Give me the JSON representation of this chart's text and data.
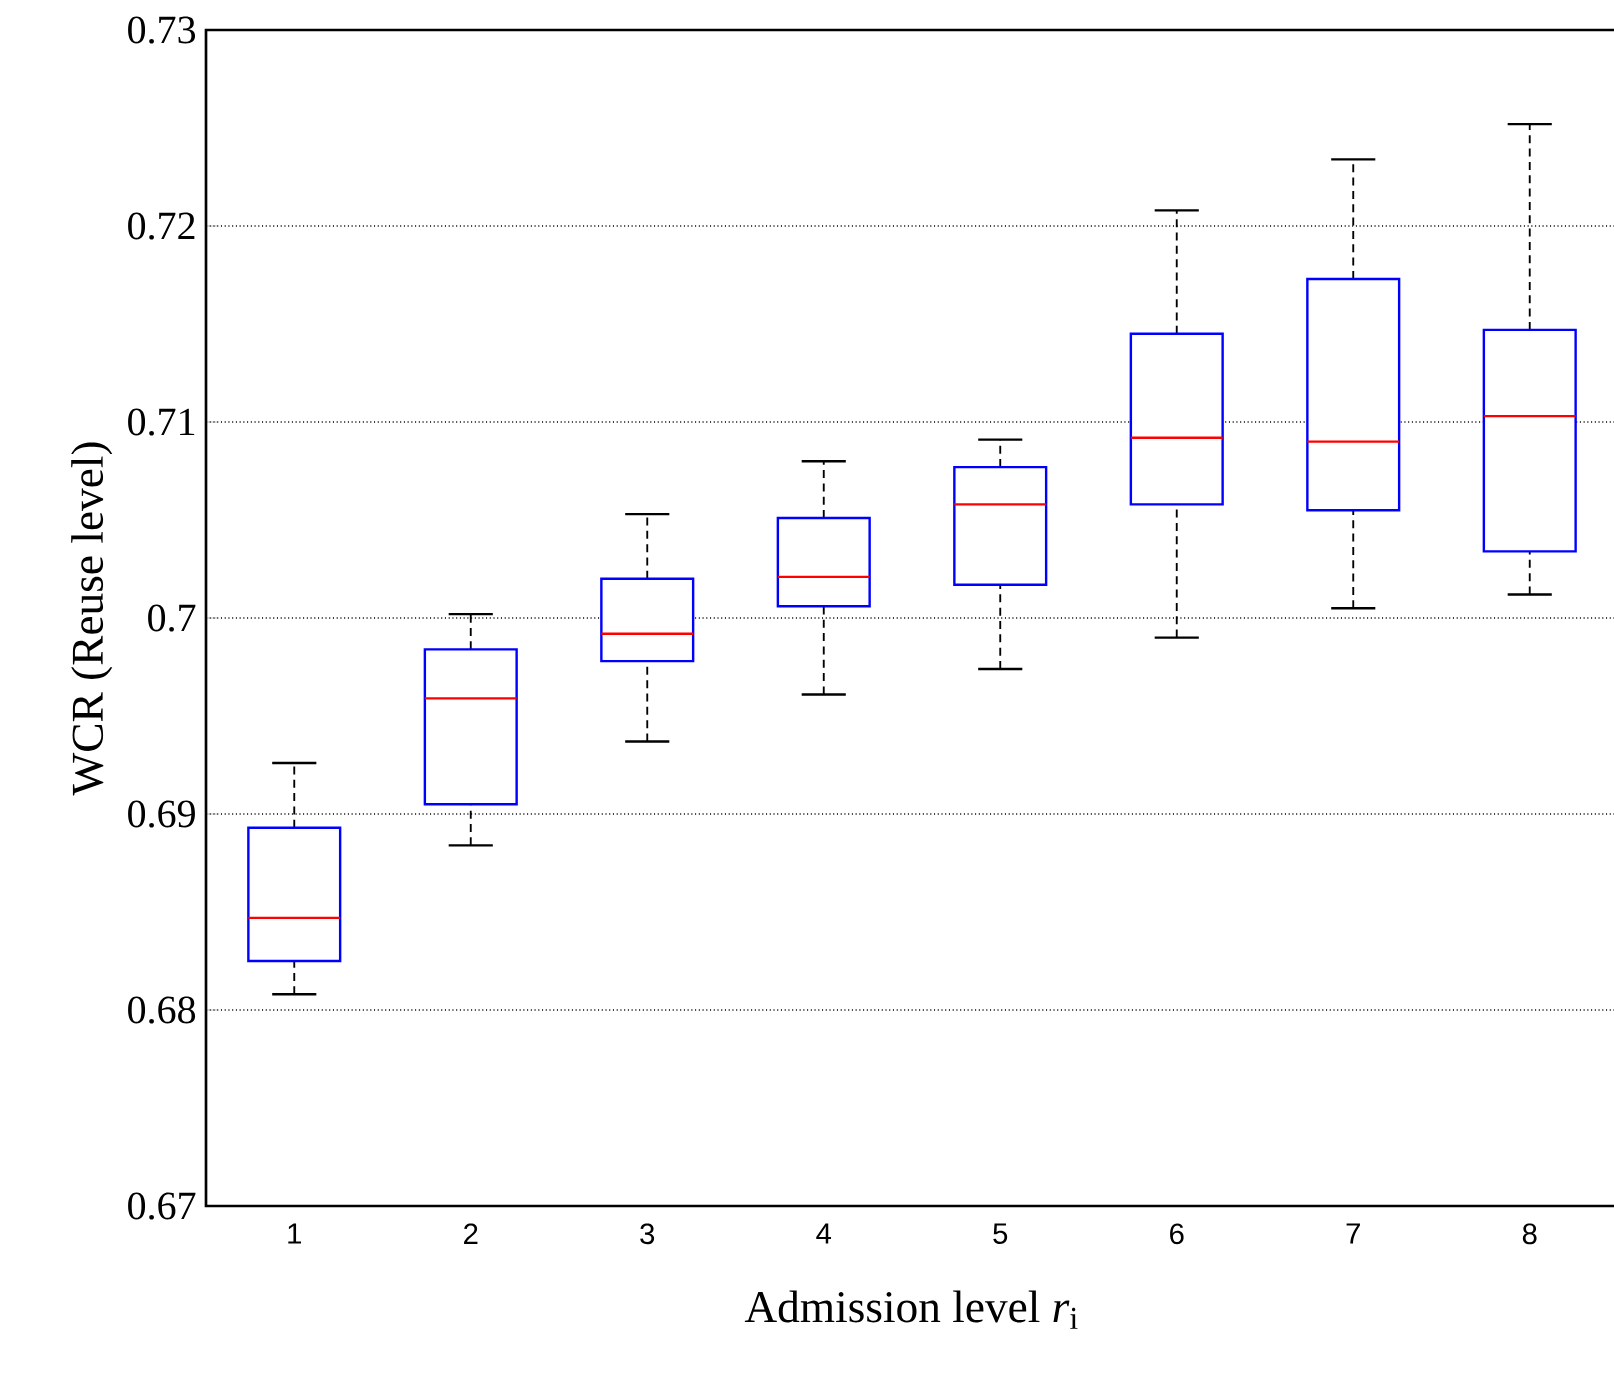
{
  "chart_data": {
    "type": "box",
    "xlabel": "Admission level *r*$_{i}$",
    "ylabel": "WCR (Reuse level)",
    "categories": [
      "1",
      "2",
      "3",
      "4",
      "5",
      "6",
      "7",
      "8"
    ],
    "color": "#0000ff",
    "boxes": [
      {
        "low": 0.6808,
        "q1": 0.6825,
        "median": 0.6847,
        "q3": 0.6893,
        "high": 0.6926
      },
      {
        "low": 0.6884,
        "q1": 0.6905,
        "median": 0.6959,
        "q3": 0.6984,
        "high": 0.7002
      },
      {
        "low": 0.6937,
        "q1": 0.6978,
        "median": 0.6992,
        "q3": 0.702,
        "high": 0.7053
      },
      {
        "low": 0.6961,
        "q1": 0.7006,
        "median": 0.7021,
        "q3": 0.7051,
        "high": 0.708
      },
      {
        "low": 0.6974,
        "q1": 0.7017,
        "median": 0.7058,
        "q3": 0.7077,
        "high": 0.7091
      },
      {
        "low": 0.699,
        "q1": 0.7058,
        "median": 0.7092,
        "q3": 0.7145,
        "high": 0.7208
      },
      {
        "low": 0.7005,
        "q1": 0.7055,
        "median": 0.709,
        "q3": 0.7173,
        "high": 0.7234
      },
      {
        "low": 0.7012,
        "q1": 0.7034,
        "median": 0.7103,
        "q3": 0.7147,
        "high": 0.7252
      }
    ],
    "ylim": [
      0.67,
      0.73
    ],
    "yticks": [
      0.67,
      0.68,
      0.69,
      0.7,
      0.71,
      0.72,
      0.73
    ],
    "grid": "y"
  }
}
